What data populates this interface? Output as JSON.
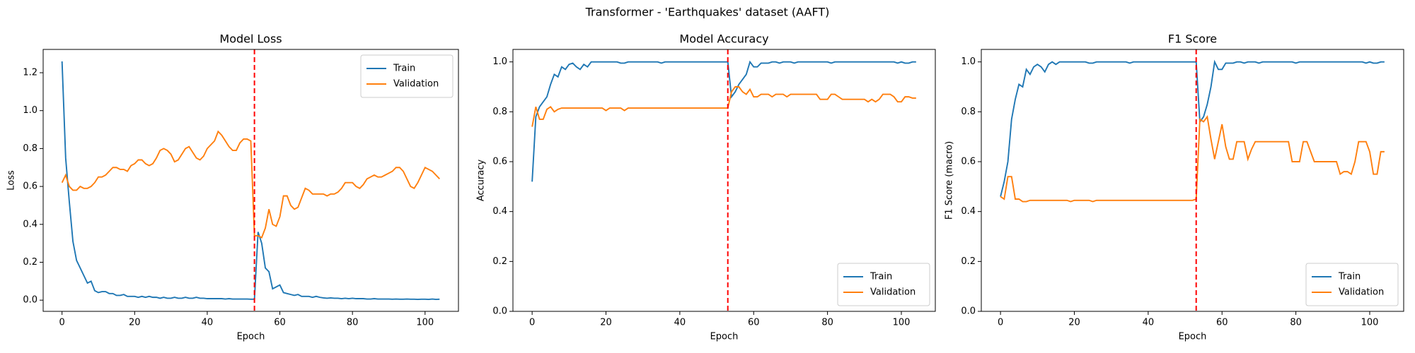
{
  "title": "Transformer - 'Earthquakes' dataset (AAFT)",
  "chart_data": [
    {
      "type": "line",
      "title": "Model Loss",
      "x_label": "Epoch",
      "y_label": "Loss",
      "x": [
        0,
        1,
        2,
        3,
        4,
        5,
        6,
        7,
        8,
        9,
        10,
        11,
        12,
        13,
        14,
        15,
        16,
        17,
        18,
        19,
        20,
        21,
        22,
        23,
        24,
        25,
        26,
        27,
        28,
        29,
        30,
        31,
        32,
        33,
        34,
        35,
        36,
        37,
        38,
        39,
        40,
        41,
        42,
        43,
        44,
        45,
        46,
        47,
        48,
        49,
        50,
        51,
        52,
        53,
        54,
        55,
        56,
        57,
        58,
        59,
        60,
        61,
        62,
        63,
        64,
        65,
        66,
        67,
        68,
        69,
        70,
        71,
        72,
        73,
        74,
        75,
        76,
        77,
        78,
        79,
        80,
        81,
        82,
        83,
        84,
        85,
        86,
        87,
        88,
        89,
        90,
        91,
        92,
        93,
        94,
        95,
        96,
        97,
        98,
        99,
        100,
        101,
        102,
        103,
        104
      ],
      "series": [
        {
          "name": "Train",
          "color": "#1f77b4",
          "values": [
            1.26,
            0.75,
            0.52,
            0.31,
            0.21,
            0.17,
            0.13,
            0.09,
            0.1,
            0.05,
            0.04,
            0.045,
            0.045,
            0.035,
            0.035,
            0.025,
            0.025,
            0.03,
            0.02,
            0.02,
            0.02,
            0.015,
            0.02,
            0.015,
            0.02,
            0.015,
            0.015,
            0.01,
            0.015,
            0.01,
            0.01,
            0.015,
            0.01,
            0.01,
            0.015,
            0.01,
            0.01,
            0.015,
            0.01,
            0.01,
            0.008,
            0.008,
            0.008,
            0.008,
            0.008,
            0.006,
            0.008,
            0.006,
            0.006,
            0.006,
            0.006,
            0.006,
            0.005,
            0.005,
            0.36,
            0.3,
            0.17,
            0.15,
            0.06,
            0.07,
            0.08,
            0.04,
            0.035,
            0.03,
            0.025,
            0.03,
            0.02,
            0.02,
            0.02,
            0.015,
            0.02,
            0.015,
            0.012,
            0.01,
            0.012,
            0.01,
            0.01,
            0.008,
            0.01,
            0.008,
            0.01,
            0.008,
            0.008,
            0.008,
            0.006,
            0.006,
            0.008,
            0.006,
            0.006,
            0.006,
            0.006,
            0.005,
            0.006,
            0.005,
            0.005,
            0.006,
            0.005,
            0.005,
            0.004,
            0.005,
            0.005,
            0.004,
            0.006,
            0.004,
            0.005
          ]
        },
        {
          "name": "Validation",
          "color": "#ff7f0e",
          "values": [
            0.62,
            0.66,
            0.6,
            0.58,
            0.58,
            0.6,
            0.59,
            0.59,
            0.6,
            0.62,
            0.65,
            0.65,
            0.66,
            0.68,
            0.7,
            0.7,
            0.69,
            0.69,
            0.68,
            0.71,
            0.72,
            0.74,
            0.74,
            0.72,
            0.71,
            0.72,
            0.75,
            0.79,
            0.8,
            0.79,
            0.77,
            0.73,
            0.74,
            0.77,
            0.8,
            0.81,
            0.78,
            0.75,
            0.74,
            0.76,
            0.8,
            0.82,
            0.84,
            0.89,
            0.87,
            0.84,
            0.81,
            0.79,
            0.79,
            0.83,
            0.85,
            0.85,
            0.84,
            0.34,
            0.34,
            0.33,
            0.38,
            0.48,
            0.4,
            0.39,
            0.44,
            0.55,
            0.55,
            0.5,
            0.48,
            0.49,
            0.54,
            0.59,
            0.58,
            0.56,
            0.56,
            0.56,
            0.56,
            0.55,
            0.56,
            0.56,
            0.57,
            0.59,
            0.62,
            0.62,
            0.62,
            0.6,
            0.59,
            0.61,
            0.64,
            0.65,
            0.66,
            0.65,
            0.65,
            0.66,
            0.67,
            0.68,
            0.7,
            0.7,
            0.68,
            0.64,
            0.6,
            0.59,
            0.62,
            0.66,
            0.7,
            0.69,
            0.68,
            0.66,
            0.64
          ]
        }
      ],
      "vline": {
        "x": 53,
        "color": "#ff0000"
      },
      "xlim": [
        -5.2,
        109.2
      ],
      "xticks": [
        0,
        20,
        40,
        60,
        80,
        100
      ],
      "ylim": [
        -0.059,
        1.323
      ],
      "yticks": [
        {
          "value": 0,
          "label": "0.0"
        },
        {
          "value": 0.2,
          "label": "0.2"
        },
        {
          "value": 0.4,
          "label": "0.4"
        },
        {
          "value": 0.6,
          "label": "0.6"
        },
        {
          "value": 0.8,
          "label": "0.8"
        },
        {
          "value": 1,
          "label": "1.0"
        },
        {
          "value": 1.2,
          "label": "1.2"
        }
      ],
      "legend": "upper right"
    },
    {
      "type": "line",
      "title": "Model Accuracy",
      "x_label": "Epoch",
      "y_label": "Accuracy",
      "x": [
        0,
        1,
        2,
        3,
        4,
        5,
        6,
        7,
        8,
        9,
        10,
        11,
        12,
        13,
        14,
        15,
        16,
        17,
        18,
        19,
        20,
        21,
        22,
        23,
        24,
        25,
        26,
        27,
        28,
        29,
        30,
        31,
        32,
        33,
        34,
        35,
        36,
        37,
        38,
        39,
        40,
        41,
        42,
        43,
        44,
        45,
        46,
        47,
        48,
        49,
        50,
        51,
        52,
        53,
        54,
        55,
        56,
        57,
        58,
        59,
        60,
        61,
        62,
        63,
        64,
        65,
        66,
        67,
        68,
        69,
        70,
        71,
        72,
        73,
        74,
        75,
        76,
        77,
        78,
        79,
        80,
        81,
        82,
        83,
        84,
        85,
        86,
        87,
        88,
        89,
        90,
        91,
        92,
        93,
        94,
        95,
        96,
        97,
        98,
        99,
        100,
        101,
        102,
        103,
        104
      ],
      "series": [
        {
          "name": "Train",
          "color": "#1f77b4",
          "values": [
            0.52,
            0.78,
            0.82,
            0.84,
            0.86,
            0.91,
            0.95,
            0.94,
            0.98,
            0.97,
            0.99,
            0.995,
            0.98,
            0.97,
            0.99,
            0.98,
            1.0,
            1.0,
            1.0,
            1.0,
            1.0,
            1.0,
            1.0,
            1.0,
            0.995,
            0.995,
            1.0,
            1.0,
            1.0,
            1.0,
            1.0,
            1.0,
            1.0,
            1.0,
            1.0,
            0.995,
            1.0,
            1.0,
            1.0,
            1.0,
            1.0,
            1.0,
            1.0,
            1.0,
            1.0,
            1.0,
            1.0,
            1.0,
            1.0,
            1.0,
            1.0,
            1.0,
            1.0,
            1.0,
            0.86,
            0.88,
            0.91,
            0.93,
            0.95,
            1.0,
            0.98,
            0.98,
            0.995,
            0.995,
            0.995,
            1.0,
            1.0,
            0.995,
            1.0,
            1.0,
            1.0,
            0.995,
            1.0,
            1.0,
            1.0,
            1.0,
            1.0,
            1.0,
            1.0,
            1.0,
            1.0,
            0.995,
            1.0,
            1.0,
            1.0,
            1.0,
            1.0,
            1.0,
            1.0,
            1.0,
            1.0,
            1.0,
            1.0,
            1.0,
            1.0,
            1.0,
            1.0,
            1.0,
            1.0,
            0.995,
            1.0,
            0.995,
            0.995,
            1.0,
            1.0
          ]
        },
        {
          "name": "Validation",
          "color": "#ff7f0e",
          "values": [
            0.74,
            0.82,
            0.77,
            0.77,
            0.81,
            0.82,
            0.8,
            0.81,
            0.815,
            0.815,
            0.815,
            0.815,
            0.815,
            0.815,
            0.815,
            0.815,
            0.815,
            0.815,
            0.815,
            0.815,
            0.805,
            0.815,
            0.815,
            0.815,
            0.815,
            0.805,
            0.815,
            0.815,
            0.815,
            0.815,
            0.815,
            0.815,
            0.815,
            0.815,
            0.815,
            0.815,
            0.815,
            0.815,
            0.815,
            0.815,
            0.815,
            0.815,
            0.815,
            0.815,
            0.815,
            0.815,
            0.815,
            0.815,
            0.815,
            0.815,
            0.815,
            0.815,
            0.815,
            0.815,
            0.88,
            0.9,
            0.9,
            0.88,
            0.87,
            0.89,
            0.86,
            0.86,
            0.87,
            0.87,
            0.87,
            0.86,
            0.87,
            0.87,
            0.87,
            0.86,
            0.87,
            0.87,
            0.87,
            0.87,
            0.87,
            0.87,
            0.87,
            0.87,
            0.85,
            0.85,
            0.85,
            0.87,
            0.87,
            0.86,
            0.85,
            0.85,
            0.85,
            0.85,
            0.85,
            0.85,
            0.85,
            0.84,
            0.85,
            0.84,
            0.85,
            0.87,
            0.87,
            0.87,
            0.86,
            0.84,
            0.84,
            0.86,
            0.86,
            0.855,
            0.855
          ]
        }
      ],
      "vline": {
        "x": 53,
        "color": "#ff0000"
      },
      "xlim": [
        -5.2,
        109.2
      ],
      "xticks": [
        0,
        20,
        40,
        60,
        80,
        100
      ],
      "ylim": [
        0,
        1.05
      ],
      "yticks": [
        {
          "value": 0,
          "label": "0.0"
        },
        {
          "value": 0.2,
          "label": "0.2"
        },
        {
          "value": 0.4,
          "label": "0.4"
        },
        {
          "value": 0.6,
          "label": "0.6"
        },
        {
          "value": 0.8,
          "label": "0.8"
        },
        {
          "value": 1,
          "label": "1.0"
        }
      ],
      "legend": "lower right"
    },
    {
      "type": "line",
      "title": "F1 Score",
      "x_label": "Epoch",
      "y_label": "F1 Score (macro)",
      "x": [
        0,
        1,
        2,
        3,
        4,
        5,
        6,
        7,
        8,
        9,
        10,
        11,
        12,
        13,
        14,
        15,
        16,
        17,
        18,
        19,
        20,
        21,
        22,
        23,
        24,
        25,
        26,
        27,
        28,
        29,
        30,
        31,
        32,
        33,
        34,
        35,
        36,
        37,
        38,
        39,
        40,
        41,
        42,
        43,
        44,
        45,
        46,
        47,
        48,
        49,
        50,
        51,
        52,
        53,
        54,
        55,
        56,
        57,
        58,
        59,
        60,
        61,
        62,
        63,
        64,
        65,
        66,
        67,
        68,
        69,
        70,
        71,
        72,
        73,
        74,
        75,
        76,
        77,
        78,
        79,
        80,
        81,
        82,
        83,
        84,
        85,
        86,
        87,
        88,
        89,
        90,
        91,
        92,
        93,
        94,
        95,
        96,
        97,
        98,
        99,
        100,
        101,
        102,
        103,
        104
      ],
      "series": [
        {
          "name": "Train",
          "color": "#1f77b4",
          "values": [
            0.46,
            0.52,
            0.6,
            0.77,
            0.85,
            0.91,
            0.9,
            0.97,
            0.95,
            0.98,
            0.99,
            0.98,
            0.96,
            0.99,
            1.0,
            0.99,
            1.0,
            1.0,
            1.0,
            1.0,
            1.0,
            1.0,
            1.0,
            1.0,
            0.995,
            0.995,
            1.0,
            1.0,
            1.0,
            1.0,
            1.0,
            1.0,
            1.0,
            1.0,
            1.0,
            0.995,
            1.0,
            1.0,
            1.0,
            1.0,
            1.0,
            1.0,
            1.0,
            1.0,
            1.0,
            1.0,
            1.0,
            1.0,
            1.0,
            1.0,
            1.0,
            1.0,
            1.0,
            1.0,
            0.76,
            0.78,
            0.83,
            0.9,
            1.0,
            0.97,
            0.97,
            0.995,
            0.995,
            0.995,
            1.0,
            1.0,
            0.995,
            1.0,
            1.0,
            1.0,
            0.995,
            1.0,
            1.0,
            1.0,
            1.0,
            1.0,
            1.0,
            1.0,
            1.0,
            1.0,
            0.995,
            1.0,
            1.0,
            1.0,
            1.0,
            1.0,
            1.0,
            1.0,
            1.0,
            1.0,
            1.0,
            1.0,
            1.0,
            1.0,
            1.0,
            1.0,
            1.0,
            1.0,
            1.0,
            0.995,
            1.0,
            0.995,
            0.995,
            1.0,
            1.0
          ]
        },
        {
          "name": "Validation",
          "color": "#ff7f0e",
          "values": [
            0.46,
            0.45,
            0.54,
            0.54,
            0.45,
            0.45,
            0.44,
            0.44,
            0.445,
            0.445,
            0.445,
            0.445,
            0.445,
            0.445,
            0.445,
            0.445,
            0.445,
            0.445,
            0.445,
            0.44,
            0.445,
            0.445,
            0.445,
            0.445,
            0.445,
            0.44,
            0.445,
            0.445,
            0.445,
            0.445,
            0.445,
            0.445,
            0.445,
            0.445,
            0.445,
            0.445,
            0.445,
            0.445,
            0.445,
            0.445,
            0.445,
            0.445,
            0.445,
            0.445,
            0.445,
            0.445,
            0.445,
            0.445,
            0.445,
            0.445,
            0.445,
            0.445,
            0.445,
            0.45,
            0.77,
            0.76,
            0.78,
            0.69,
            0.61,
            0.68,
            0.75,
            0.66,
            0.61,
            0.61,
            0.68,
            0.68,
            0.68,
            0.61,
            0.65,
            0.68,
            0.68,
            0.68,
            0.68,
            0.68,
            0.68,
            0.68,
            0.68,
            0.68,
            0.68,
            0.6,
            0.6,
            0.6,
            0.68,
            0.68,
            0.64,
            0.6,
            0.6,
            0.6,
            0.6,
            0.6,
            0.6,
            0.6,
            0.55,
            0.56,
            0.56,
            0.55,
            0.6,
            0.68,
            0.68,
            0.68,
            0.64,
            0.55,
            0.55,
            0.64,
            0.64
          ]
        }
      ],
      "vline": {
        "x": 53,
        "color": "#ff0000"
      },
      "xlim": [
        -5.2,
        109.2
      ],
      "xticks": [
        0,
        20,
        40,
        60,
        80,
        100
      ],
      "ylim": [
        0,
        1.05
      ],
      "yticks": [
        {
          "value": 0,
          "label": "0.0"
        },
        {
          "value": 0.2,
          "label": "0.2"
        },
        {
          "value": 0.4,
          "label": "0.4"
        },
        {
          "value": 0.6,
          "label": "0.6"
        },
        {
          "value": 0.8,
          "label": "0.8"
        },
        {
          "value": 1,
          "label": "1.0"
        }
      ],
      "legend": "lower right"
    }
  ]
}
